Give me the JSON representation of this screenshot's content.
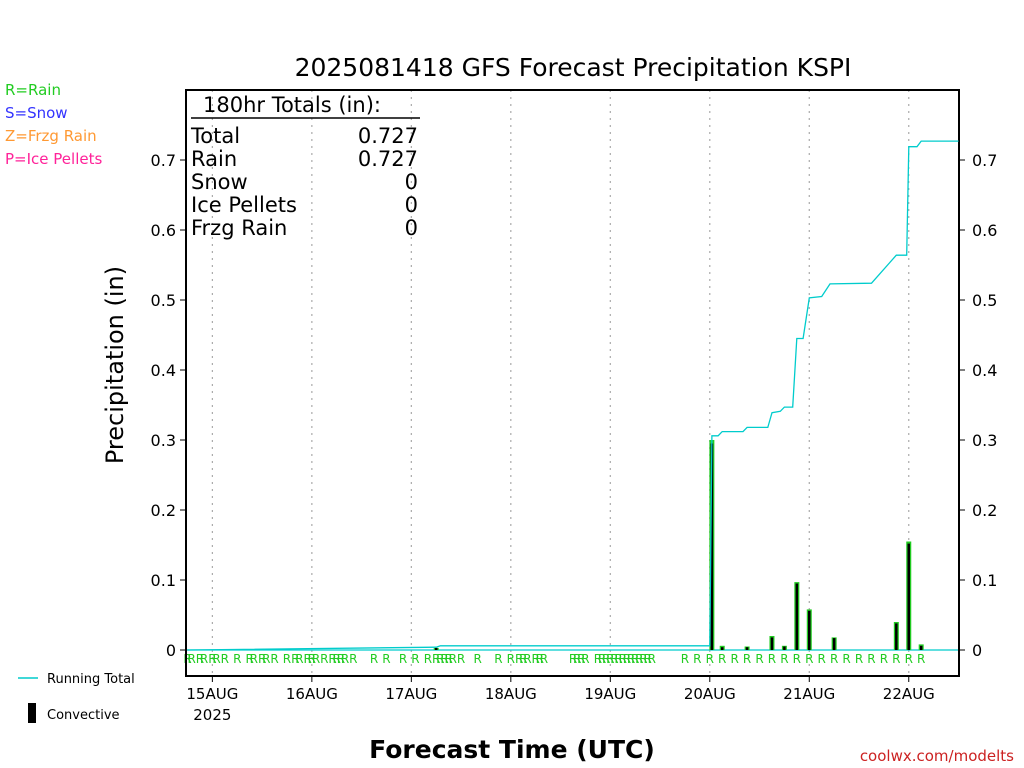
{
  "chart_data": {
    "type": "bar",
    "title": "2025081418 GFS Forecast Precipitation KSPI",
    "xlabel": "Forecast Time (UTC)",
    "ylabel": "Precipitation (in)",
    "ylim": [
      0,
      0.79
    ],
    "yticks": [
      0,
      0.1,
      0.2,
      0.3,
      0.4,
      0.5,
      0.6,
      0.7
    ],
    "ytick_labels": [
      "0",
      "0.1",
      "0.2",
      "0.3",
      "0.4",
      "0.5",
      "0.6",
      "0.7"
    ],
    "x_unit": "hours since 2025-08-14 18Z",
    "xlim": [
      0,
      186
    ],
    "xticks": [
      {
        "x": 6,
        "label": "15AUG"
      },
      {
        "x": 30,
        "label": "16AUG"
      },
      {
        "x": 54,
        "label": "17AUG"
      },
      {
        "x": 78,
        "label": "18AUG"
      },
      {
        "x": 102,
        "label": "19AUG"
      },
      {
        "x": 126,
        "label": "20AUG"
      },
      {
        "x": 150,
        "label": "21AUG"
      },
      {
        "x": 174,
        "label": "22AUG"
      }
    ],
    "year_label": "2025",
    "grid": "vertical dotted at day boundaries",
    "legend_precip_types": [
      {
        "code": "R",
        "label": "R=Rain",
        "color": "#22cc22"
      },
      {
        "code": "S",
        "label": "S=Snow",
        "color": "#3333ff"
      },
      {
        "code": "Z",
        "label": "Z=Frzg Rain",
        "color": "#ff9933"
      },
      {
        "code": "P",
        "label": "P=Ice Pellets",
        "color": "#ff2299"
      }
    ],
    "legend_series": [
      {
        "label": "Running Total",
        "color": "#00cccc"
      },
      {
        "label": "Convective",
        "color": "#000000"
      }
    ],
    "totals_box": {
      "header": "180hr Totals (in):",
      "rows": [
        {
          "label": "Total",
          "value": "0.727"
        },
        {
          "label": "Rain",
          "value": "0.727"
        },
        {
          "label": "Snow",
          "value": "0"
        },
        {
          "label": "Ice Pellets",
          "value": "0"
        },
        {
          "label": "Frzg Rain",
          "value": "0"
        }
      ]
    },
    "series": [
      {
        "name": "Precipitation",
        "color": "#22cc22",
        "points": [
          {
            "x": 60,
            "y": 0.003
          },
          {
            "x": 126.5,
            "y": 0.3
          },
          {
            "x": 129,
            "y": 0.006
          },
          {
            "x": 135,
            "y": 0.005
          },
          {
            "x": 141,
            "y": 0.02
          },
          {
            "x": 144,
            "y": 0.006
          },
          {
            "x": 147,
            "y": 0.097
          },
          {
            "x": 150,
            "y": 0.058
          },
          {
            "x": 156,
            "y": 0.018
          },
          {
            "x": 171,
            "y": 0.04
          },
          {
            "x": 174,
            "y": 0.155
          },
          {
            "x": 177,
            "y": 0.008
          }
        ]
      },
      {
        "name": "Convective",
        "color": "#000000",
        "points": [
          {
            "x": 60,
            "y": 0.003
          },
          {
            "x": 126.5,
            "y": 0.295
          },
          {
            "x": 129,
            "y": 0.004
          },
          {
            "x": 135,
            "y": 0.004
          },
          {
            "x": 141,
            "y": 0.018
          },
          {
            "x": 144,
            "y": 0.005
          },
          {
            "x": 147,
            "y": 0.095
          },
          {
            "x": 150,
            "y": 0.056
          },
          {
            "x": 156,
            "y": 0.017
          },
          {
            "x": 171,
            "y": 0.038
          },
          {
            "x": 174,
            "y": 0.152
          },
          {
            "x": 177,
            "y": 0.006
          }
        ]
      },
      {
        "name": "Running Total",
        "color": "#00cccc",
        "step_points": [
          {
            "x": 0,
            "y": 0
          },
          {
            "x": 60,
            "y": 0.004
          },
          {
            "x": 61,
            "y": 0.006
          },
          {
            "x": 126,
            "y": 0.006
          },
          {
            "x": 126.5,
            "y": 0.306
          },
          {
            "x": 128,
            "y": 0.306
          },
          {
            "x": 129,
            "y": 0.312
          },
          {
            "x": 134,
            "y": 0.312
          },
          {
            "x": 135,
            "y": 0.318
          },
          {
            "x": 140,
            "y": 0.318
          },
          {
            "x": 141,
            "y": 0.339
          },
          {
            "x": 143,
            "y": 0.341
          },
          {
            "x": 144,
            "y": 0.347
          },
          {
            "x": 146,
            "y": 0.347
          },
          {
            "x": 147,
            "y": 0.445
          },
          {
            "x": 148.5,
            "y": 0.445
          },
          {
            "x": 150,
            "y": 0.503
          },
          {
            "x": 153,
            "y": 0.505
          },
          {
            "x": 155,
            "y": 0.523
          },
          {
            "x": 165,
            "y": 0.524
          },
          {
            "x": 171,
            "y": 0.564
          },
          {
            "x": 173.5,
            "y": 0.564
          },
          {
            "x": 174,
            "y": 0.719
          },
          {
            "x": 176,
            "y": 0.719
          },
          {
            "x": 177,
            "y": 0.727
          },
          {
            "x": 186,
            "y": 0.727
          }
        ]
      }
    ],
    "ptype_markers": {
      "label": "R",
      "color": "#22cc22",
      "x": [
        0,
        1,
        3,
        4,
        6,
        7,
        9,
        12,
        15,
        16,
        18,
        19,
        21,
        24,
        26,
        27,
        29,
        30,
        31,
        33,
        35,
        36,
        37,
        38,
        40,
        45,
        48,
        52,
        55,
        58,
        60,
        61,
        62,
        63,
        64,
        66,
        70,
        75,
        78,
        80,
        81,
        82,
        84,
        85,
        86,
        93,
        94,
        95,
        96,
        99,
        100,
        101,
        102,
        103,
        104,
        105,
        106,
        107,
        108,
        109,
        110,
        111,
        112,
        120,
        123,
        126,
        129,
        132,
        135,
        138,
        141,
        144,
        147,
        150,
        153,
        156,
        159,
        162,
        165,
        168,
        171,
        174,
        177
      ]
    }
  },
  "credit": "coolwx.com/modelts"
}
